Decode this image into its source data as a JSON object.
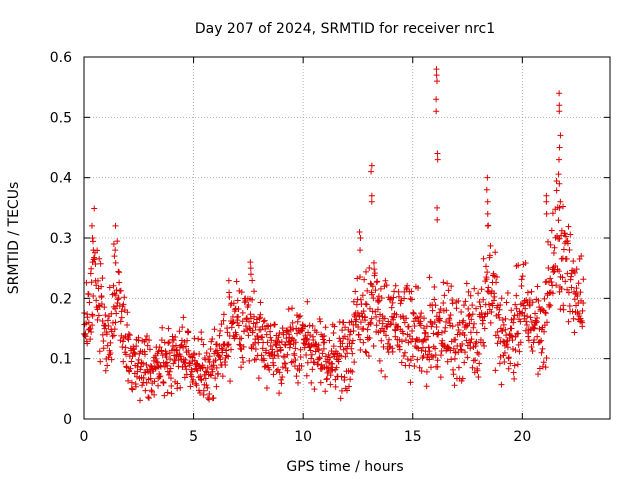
{
  "chart_data": {
    "type": "scatter",
    "title": "Day 207 of 2024, SRMTID for receiver nrc1",
    "xlabel": "GPS time / hours",
    "ylabel": "SRMTID / TECUs",
    "xlim": [
      0,
      24
    ],
    "ylim": [
      0,
      0.6
    ],
    "xticks": [
      0,
      5,
      10,
      15,
      20
    ],
    "xtick_labels": [
      "0",
      "5",
      "10",
      "15",
      "20"
    ],
    "yticks": [
      0,
      0.1,
      0.2,
      0.3,
      0.4,
      0.5,
      0.6
    ],
    "ytick_labels": [
      "0",
      "0.1",
      "0.2",
      "0.3",
      "0.4",
      "0.5",
      "0.6"
    ],
    "grid": true,
    "marker": "+",
    "color": "#dd0000",
    "x_range_hours": [
      0,
      22.8
    ],
    "profile": {
      "x": [
        0,
        0.3,
        0.5,
        0.8,
        1.0,
        1.3,
        1.5,
        1.8,
        2.0,
        2.5,
        3.0,
        3.5,
        4.0,
        4.5,
        5.0,
        5.5,
        6.0,
        6.5,
        7.0,
        7.5,
        8.0,
        8.5,
        9.0,
        9.5,
        10.0,
        10.5,
        11.0,
        11.5,
        12.0,
        12.5,
        13.0,
        13.5,
        14.0,
        14.5,
        15.0,
        15.5,
        16.0,
        16.5,
        17.0,
        17.5,
        18.0,
        18.5,
        19.0,
        19.5,
        20.0,
        20.5,
        21.0,
        21.3,
        21.6,
        22.0,
        22.5,
        22.8
      ],
      "y": [
        0.13,
        0.18,
        0.24,
        0.17,
        0.15,
        0.16,
        0.22,
        0.14,
        0.11,
        0.09,
        0.08,
        0.11,
        0.1,
        0.11,
        0.09,
        0.08,
        0.09,
        0.13,
        0.15,
        0.17,
        0.14,
        0.12,
        0.11,
        0.12,
        0.13,
        0.11,
        0.1,
        0.1,
        0.11,
        0.17,
        0.2,
        0.17,
        0.15,
        0.16,
        0.14,
        0.12,
        0.16,
        0.15,
        0.13,
        0.15,
        0.14,
        0.25,
        0.13,
        0.14,
        0.18,
        0.16,
        0.15,
        0.24,
        0.3,
        0.25,
        0.21,
        0.21
      ],
      "spread": [
        0.04,
        0.06,
        0.07,
        0.05,
        0.05,
        0.06,
        0.06,
        0.05,
        0.04,
        0.04,
        0.04,
        0.04,
        0.04,
        0.04,
        0.04,
        0.04,
        0.04,
        0.05,
        0.05,
        0.05,
        0.05,
        0.04,
        0.04,
        0.04,
        0.05,
        0.04,
        0.04,
        0.04,
        0.05,
        0.06,
        0.07,
        0.06,
        0.05,
        0.05,
        0.05,
        0.05,
        0.06,
        0.05,
        0.05,
        0.05,
        0.05,
        0.07,
        0.05,
        0.05,
        0.06,
        0.05,
        0.05,
        0.06,
        0.08,
        0.06,
        0.05,
        0.05
      ]
    },
    "spikes": [
      {
        "x": 0.4,
        "y": [
          0.32,
          0.3,
          0.28,
          0.26
        ]
      },
      {
        "x": 1.4,
        "y": [
          0.32,
          0.29,
          0.28,
          0.27
        ]
      },
      {
        "x": 7.6,
        "y": [
          0.26,
          0.25,
          0.24
        ]
      },
      {
        "x": 12.6,
        "y": [
          0.31,
          0.3,
          0.28
        ]
      },
      {
        "x": 13.1,
        "y": [
          0.42,
          0.41,
          0.37,
          0.36
        ]
      },
      {
        "x": 16.1,
        "y": [
          0.58,
          0.57,
          0.56,
          0.53,
          0.51,
          0.44,
          0.43,
          0.35,
          0.33
        ]
      },
      {
        "x": 18.4,
        "y": [
          0.4,
          0.38,
          0.36,
          0.34,
          0.32
        ]
      },
      {
        "x": 21.7,
        "y": [
          0.54,
          0.52,
          0.51,
          0.47,
          0.45,
          0.43,
          0.39,
          0.36,
          0.35
        ]
      },
      {
        "x": 21.1,
        "y": [
          0.37,
          0.36,
          0.34
        ]
      }
    ]
  }
}
